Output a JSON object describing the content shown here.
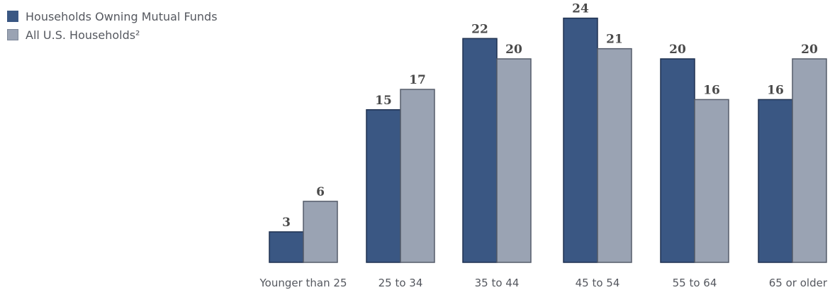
{
  "chart_data": {
    "type": "bar",
    "title": "",
    "xlabel": "",
    "ylabel": "",
    "ylim": [
      0,
      24
    ],
    "grid": false,
    "legend_position": "top-left",
    "categories": [
      "Younger than 25",
      "25 to 34",
      "35 to 44",
      "45 to 54",
      "55 to 64",
      "65 or older"
    ],
    "series": [
      {
        "name": "Households Owning Mutual Funds",
        "values": [
          3,
          15,
          22,
          24,
          20,
          16
        ],
        "color": "#3a5783"
      },
      {
        "name": "All U.S. Households²",
        "values": [
          6,
          17,
          20,
          21,
          16,
          20
        ],
        "color": "#9aa3b3"
      }
    ]
  }
}
